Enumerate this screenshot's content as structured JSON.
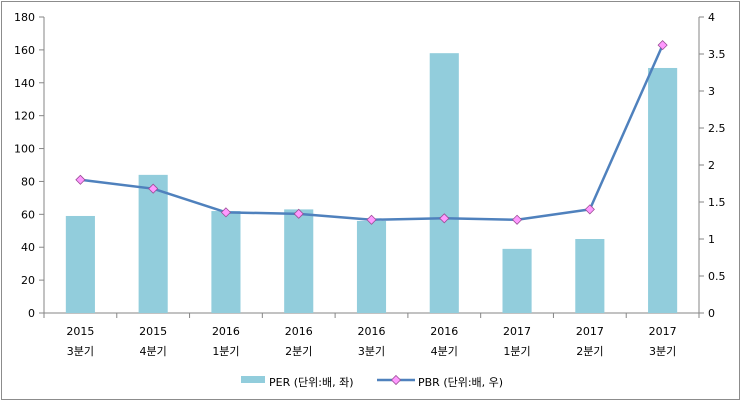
{
  "chart_data": {
    "type": "bar+line",
    "categories": [
      [
        "2015",
        "3분기"
      ],
      [
        "2015",
        "4분기"
      ],
      [
        "2016",
        "1분기"
      ],
      [
        "2016",
        "2분기"
      ],
      [
        "2016",
        "3분기"
      ],
      [
        "2016",
        "4분기"
      ],
      [
        "2017",
        "1분기"
      ],
      [
        "2017",
        "2분기"
      ],
      [
        "2017",
        "3분기"
      ]
    ],
    "series": [
      {
        "name": "PER (단위:배, 좌)",
        "type": "bar",
        "axis": "left",
        "color": "#92cddc",
        "values": [
          59,
          84,
          62,
          63,
          56,
          158,
          39,
          45,
          149
        ]
      },
      {
        "name": "PBR (단위:배, 우)",
        "type": "line",
        "axis": "right",
        "color": "#4f81bd",
        "marker_color": "#ff99ff",
        "values": [
          1.8,
          1.68,
          1.36,
          1.34,
          1.26,
          1.28,
          1.26,
          1.4,
          3.62
        ]
      }
    ],
    "y_left": {
      "min": 0,
      "max": 180,
      "ticks": [
        "0",
        "20",
        "40",
        "60",
        "80",
        "100",
        "120",
        "140",
        "160",
        "180"
      ]
    },
    "y_right": {
      "min": 0,
      "max": 4,
      "ticks": [
        "0",
        "0.5",
        "1",
        "1.5",
        "2",
        "2.5",
        "3",
        "3.5",
        "4"
      ]
    },
    "grid": false,
    "legend": "bottom"
  }
}
